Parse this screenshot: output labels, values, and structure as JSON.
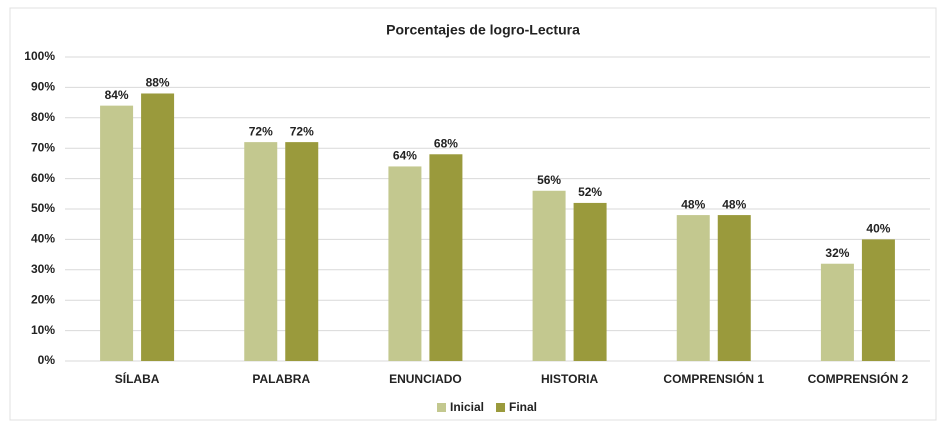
{
  "chart_data": {
    "type": "bar",
    "title": "Porcentajes de logro-Lectura",
    "categories": [
      "SÍLABA",
      "PALABRA",
      "ENUNCIADO",
      "HISTORIA",
      "COMPRENSIÓN 1",
      "COMPRENSIÓN 2"
    ],
    "series": [
      {
        "name": "Inicial",
        "color": "#c3c88f",
        "values": [
          84,
          72,
          64,
          56,
          48,
          32
        ],
        "value_labels": [
          "84%",
          "72%",
          "64%",
          "56%",
          "48%",
          "32%"
        ]
      },
      {
        "name": "Final",
        "color": "#9a9a3c",
        "values": [
          88,
          72,
          68,
          52,
          48,
          40
        ],
        "value_labels": [
          "88%",
          "72%",
          "68%",
          "52%",
          "48%",
          "40%"
        ]
      }
    ],
    "ylim": [
      0,
      100
    ],
    "yticks": [
      {
        "value": 0,
        "label": "0%"
      },
      {
        "value": 10,
        "label": "10%"
      },
      {
        "value": 20,
        "label": "20%"
      },
      {
        "value": 30,
        "label": "30%"
      },
      {
        "value": 40,
        "label": "40%"
      },
      {
        "value": 50,
        "label": "50%"
      },
      {
        "value": 60,
        "label": "60%"
      },
      {
        "value": 70,
        "label": "70%"
      },
      {
        "value": 80,
        "label": "80%"
      },
      {
        "value": 90,
        "label": "90%"
      },
      {
        "value": 100,
        "label": "100%"
      }
    ],
    "grid": true,
    "legend": "bottom"
  }
}
